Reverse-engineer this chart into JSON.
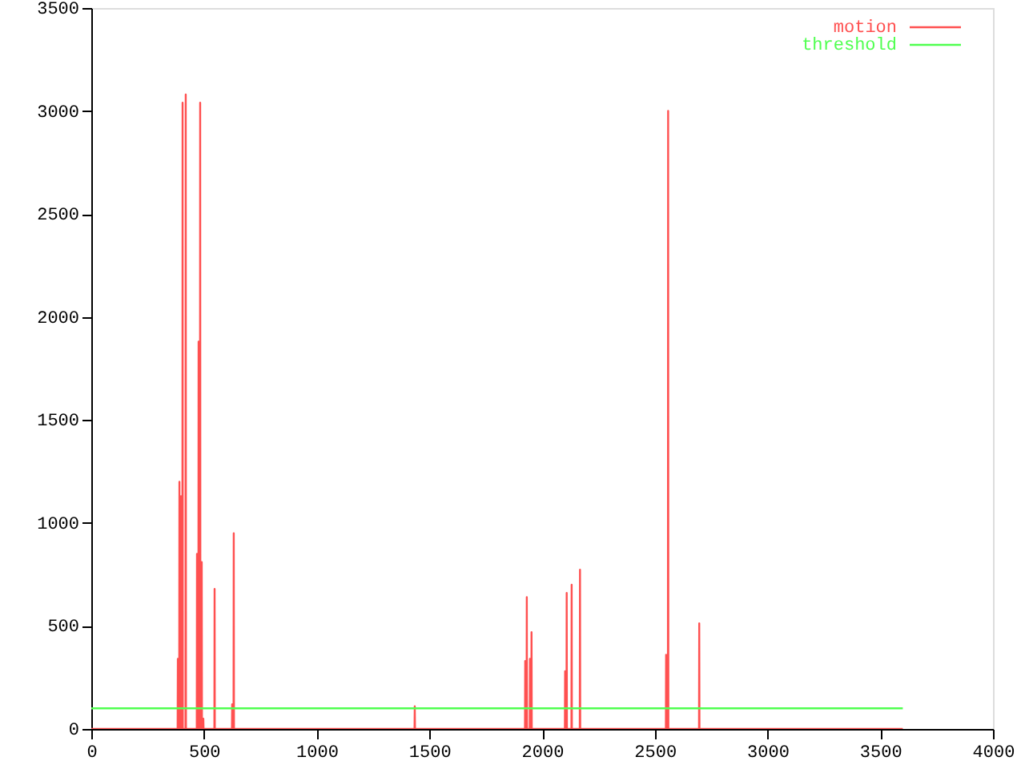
{
  "chart_data": {
    "type": "line",
    "series": [
      {
        "name": "motion",
        "color": "#ff5050",
        "x": [
          0,
          383,
          384,
          385,
          390,
          391,
          392,
          397,
          398,
          399,
          404,
          405,
          406,
          418,
          419,
          420,
          468,
          469,
          470,
          475,
          476,
          477,
          482,
          483,
          484,
          489,
          490,
          491,
          496,
          497,
          498,
          546,
          547,
          548,
          624,
          625,
          626,
          631,
          632,
          633,
          1434,
          1435,
          1436,
          1924,
          1925,
          1926,
          1931,
          1932,
          1933,
          1945,
          1946,
          1947,
          1952,
          1953,
          1954,
          2101,
          2102,
          2103,
          2108,
          2109,
          2110,
          2130,
          2131,
          2132,
          2167,
          2168,
          2169,
          2549,
          2550,
          2551,
          2558,
          2559,
          2560,
          2696,
          2697,
          2698,
          3600
        ],
        "values": [
          0,
          0,
          340,
          0,
          0,
          1200,
          0,
          0,
          1130,
          0,
          0,
          3040,
          0,
          0,
          3080,
          0,
          0,
          850,
          0,
          0,
          1880,
          0,
          0,
          3040,
          0,
          0,
          810,
          0,
          0,
          50,
          0,
          0,
          680,
          0,
          0,
          120,
          0,
          0,
          950,
          0,
          0,
          110,
          0,
          0,
          330,
          0,
          0,
          640,
          0,
          0,
          340,
          0,
          0,
          470,
          0,
          0,
          280,
          0,
          0,
          660,
          0,
          0,
          700,
          0,
          0,
          773,
          0,
          0,
          360,
          0,
          0,
          3000,
          0,
          0,
          513,
          0,
          0
        ]
      },
      {
        "name": "threshold",
        "color": "#50ff50",
        "x": [
          0,
          3600
        ],
        "values": [
          100,
          100
        ]
      }
    ],
    "xlim": [
      0,
      4000
    ],
    "xticks": [
      0,
      500,
      1000,
      1500,
      2000,
      2500,
      3000,
      3500,
      4000
    ],
    "ylim": [
      0,
      3500
    ],
    "yticks": [
      0,
      500,
      1000,
      1500,
      2000,
      2500,
      3000,
      3500
    ],
    "grid": false,
    "legend": "top right"
  }
}
